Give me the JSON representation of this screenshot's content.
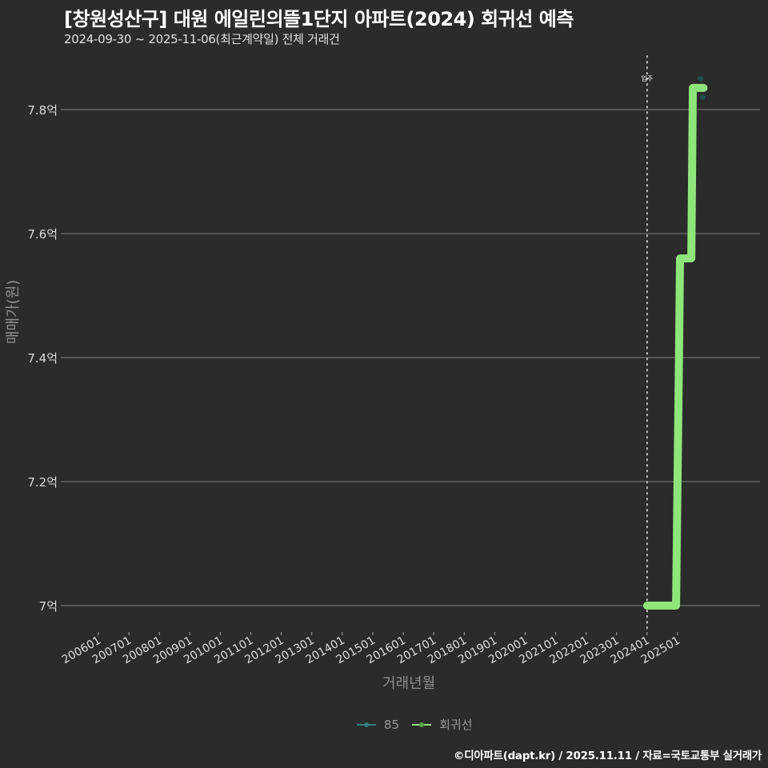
{
  "header": {
    "title": "[창원성산구] 대원 에일린의뜰1단지 아파트(2024) 회귀선 예측",
    "subtitle": "2024-09-30 ~ 2025-11-06(최근계약일) 전체 거래건"
  },
  "axes": {
    "y_title": "매매가(원)",
    "x_title": "거래년월"
  },
  "legend": {
    "items": [
      {
        "label": "85",
        "color": "#2e7f7a"
      },
      {
        "label": "회귀선",
        "color": "#8ee67a"
      }
    ]
  },
  "annotation": {
    "label": "입주",
    "x_tick": "202401"
  },
  "footer": {
    "credit": "©디아파트(dapt.kr) / 2025.11.11 / 자료=국토교통부 실거래가"
  },
  "colors": {
    "background": "#2b2b2b",
    "grid": "#6e6e6e",
    "regression": "#8ee67a",
    "points": "#1f4f4b"
  },
  "chart_data": {
    "type": "line",
    "title": "[창원성산구] 대원 에일린의뜰1단지 아파트(2024) 회귀선 예측",
    "subtitle": "2024-09-30 ~ 2025-11-06(최근계약일) 전체 거래건",
    "xlabel": "거래년월",
    "ylabel": "매매가(원)",
    "x_ticks": [
      "200601",
      "200701",
      "200801",
      "200901",
      "201001",
      "201101",
      "201201",
      "201301",
      "201401",
      "201501",
      "201601",
      "201701",
      "201801",
      "201901",
      "202001",
      "202101",
      "202201",
      "202301",
      "202401",
      "202501"
    ],
    "y_ticks": [
      7.0,
      7.2,
      7.4,
      7.6,
      7.8
    ],
    "y_tick_labels": [
      "7억",
      "7.2억",
      "7.4억",
      "7.6억",
      "7.8억"
    ],
    "ylim": [
      6.96,
      7.88
    ],
    "grid": true,
    "legend_position": "bottom",
    "vline": {
      "x": "202401",
      "label": "입주",
      "style": "dotted"
    },
    "series": [
      {
        "name": "회귀선",
        "type": "line",
        "color": "#8ee67a",
        "x": [
          2024.0,
          2024.95,
          2025.05,
          2025.08,
          2025.45,
          2025.5,
          2025.85
        ],
        "y": [
          7.0,
          7.0,
          7.42,
          7.56,
          7.56,
          7.835,
          7.835
        ]
      },
      {
        "name": "85",
        "type": "scatter",
        "color": "#1f4f4b",
        "x": [
          2025.75,
          2025.83
        ],
        "y": [
          7.85,
          7.82
        ]
      }
    ]
  }
}
